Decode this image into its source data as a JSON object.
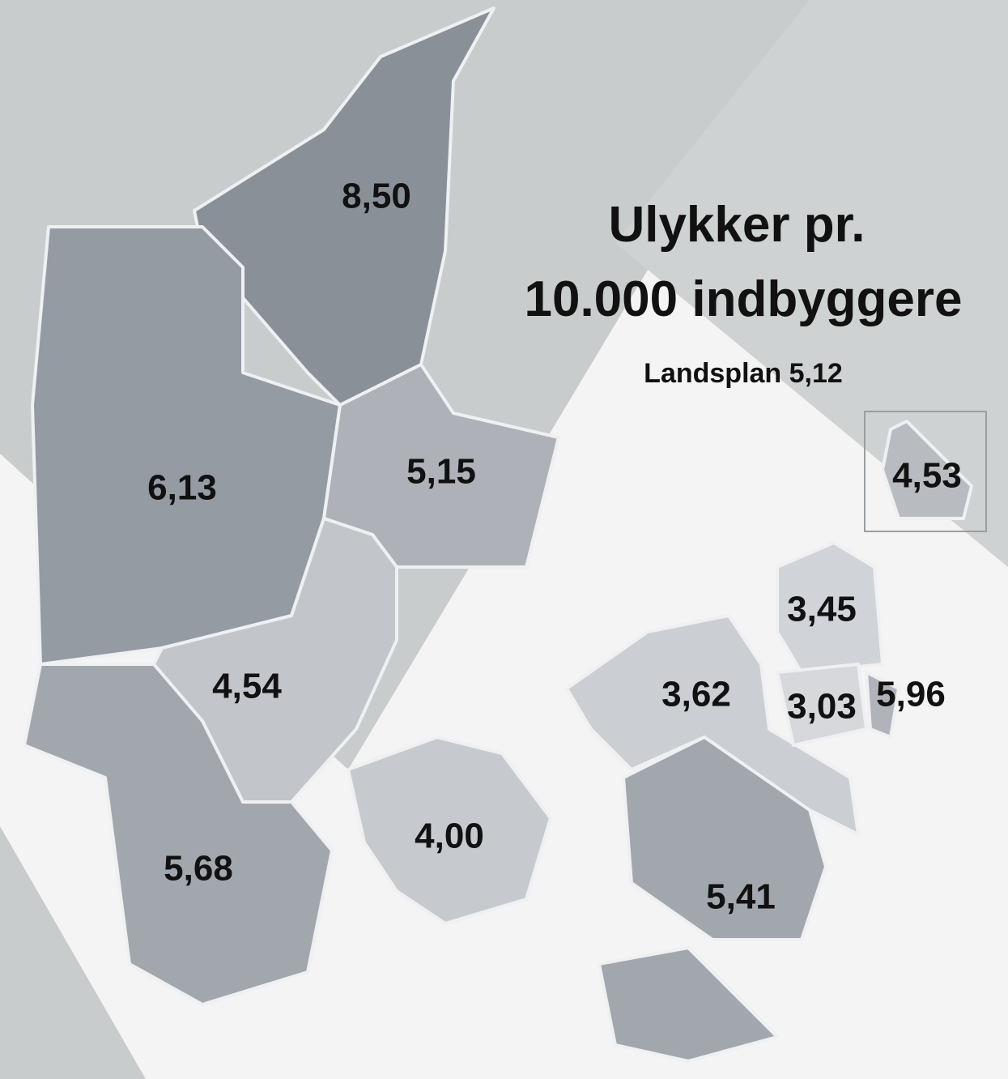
{
  "title_lines": [
    "Ulykker pr.",
    "10.000 indbyggere"
  ],
  "subtitle": "Landsplan 5,12",
  "regions": [
    {
      "label": "8,50",
      "color": "#8a9098"
    },
    {
      "label": "6,13",
      "color": "#959ba3"
    },
    {
      "label": "5,15",
      "color": "#aeb2b8"
    },
    {
      "label": "4,54",
      "color": "#c2c5ca"
    },
    {
      "label": "5,68",
      "color": "#a2a7ae"
    },
    {
      "label": "4,00",
      "color": "#c6c9ce"
    },
    {
      "label": "3,62",
      "color": "#cbced2"
    },
    {
      "label": "5,41",
      "color": "#a2a7ae"
    },
    {
      "label": "3,45",
      "color": "#d0d3d7"
    },
    {
      "label": "3,03",
      "color": "#d6d8db"
    },
    {
      "label": "5,96",
      "color": "#b0b4ba"
    },
    {
      "label": "4,53",
      "color": "#b8bcc1"
    }
  ]
}
